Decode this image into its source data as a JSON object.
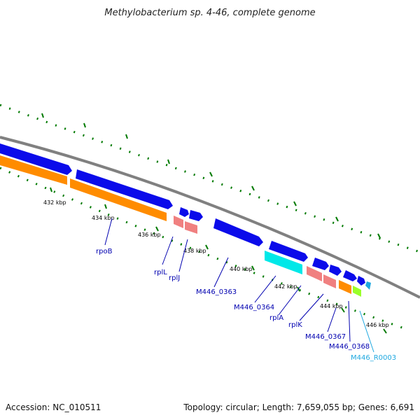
{
  "title": "Methylobacterium sp. 4-46, complete genome",
  "footer": {
    "accession": "Accession: NC_010511",
    "summary": "Topology: circular; Length: 7,659,055 bp; Genes: 6,691"
  },
  "scale_labels": [
    "432 kbp",
    "434 kbp",
    "436 kbp",
    "438 kbp",
    "440 kbp",
    "442 kbp",
    "444 kbp",
    "446 kbp"
  ],
  "colors": {
    "cds": "#0b0bea",
    "gene": "#ff8c00",
    "rrna": "#f08080",
    "tmrna": "#00e8e8",
    "trna": "#9aff2a",
    "misc": "#1ea8e0",
    "backbone": "#808080",
    "tick": "#007a00",
    "label": "#0000b0",
    "label_light": "#1ea8e0"
  },
  "gene_labels": {
    "rpoB": "rpoB",
    "rplL": "rplL",
    "rplJ": "rplJ",
    "m0363": "M446_0363",
    "m0364": "M446_0364",
    "rplA": "rplA",
    "rplK": "rplK",
    "m0367": "M446_0367",
    "m0368": "M446_0368",
    "r0003": "M446_R0003"
  }
}
